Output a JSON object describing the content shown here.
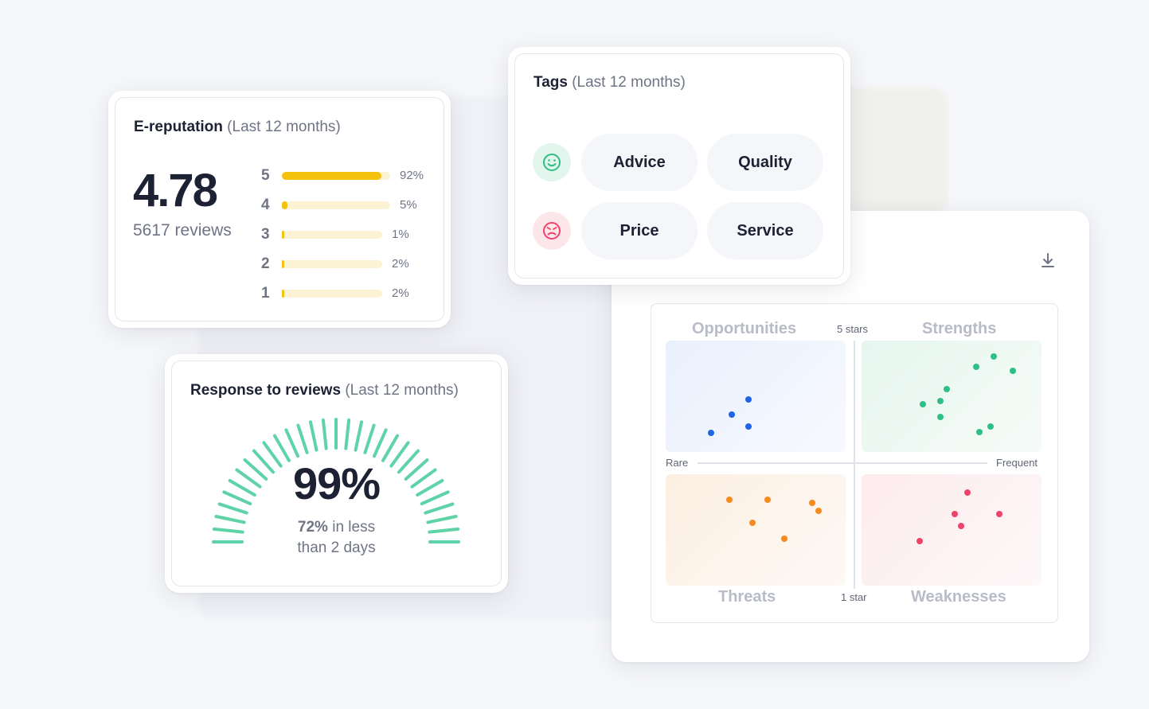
{
  "reputation": {
    "title": "E-reputation",
    "period": "(Last 12 months)",
    "score": "4.78",
    "reviews": "5617 reviews",
    "ratings": [
      {
        "star": "5",
        "pct": "92%",
        "value": 92
      },
      {
        "star": "4",
        "pct": "5%",
        "value": 5
      },
      {
        "star": "3",
        "pct": "1%",
        "value": 1
      },
      {
        "star": "2",
        "pct": "2%",
        "value": 2
      },
      {
        "star": "1",
        "pct": "2%",
        "value": 2
      }
    ]
  },
  "tags": {
    "title": "Tags",
    "period": "(Last 12 months)",
    "positive": [
      "Advice",
      "Quality"
    ],
    "negative": [
      "Price",
      "Service"
    ],
    "icons": {
      "positive": "smile-icon",
      "negative": "angry-face-icon"
    }
  },
  "response": {
    "title": "Response to reviews",
    "period": "(Last 12 months)",
    "value": "99%",
    "gauge_value": 99,
    "sub_pct": "72%",
    "sub_text": "in less",
    "sub_text2": "than 2 days"
  },
  "swot": {
    "download_icon": "download-icon",
    "top_axis": "5 stars",
    "bottom_axis": "1 star",
    "left_axis": "Rare",
    "right_axis": "Frequent",
    "quadrants": {
      "opportunities": "Opportunities",
      "strengths": "Strengths",
      "threats": "Threats",
      "weaknesses": "Weaknesses"
    }
  },
  "colors": {
    "accent_yellow": "#f3c20f",
    "gauge_green": "#5fd3a8",
    "blue": "#1f63e6",
    "green": "#2fbf86",
    "orange": "#f58a1f",
    "red": "#f0436a"
  }
}
